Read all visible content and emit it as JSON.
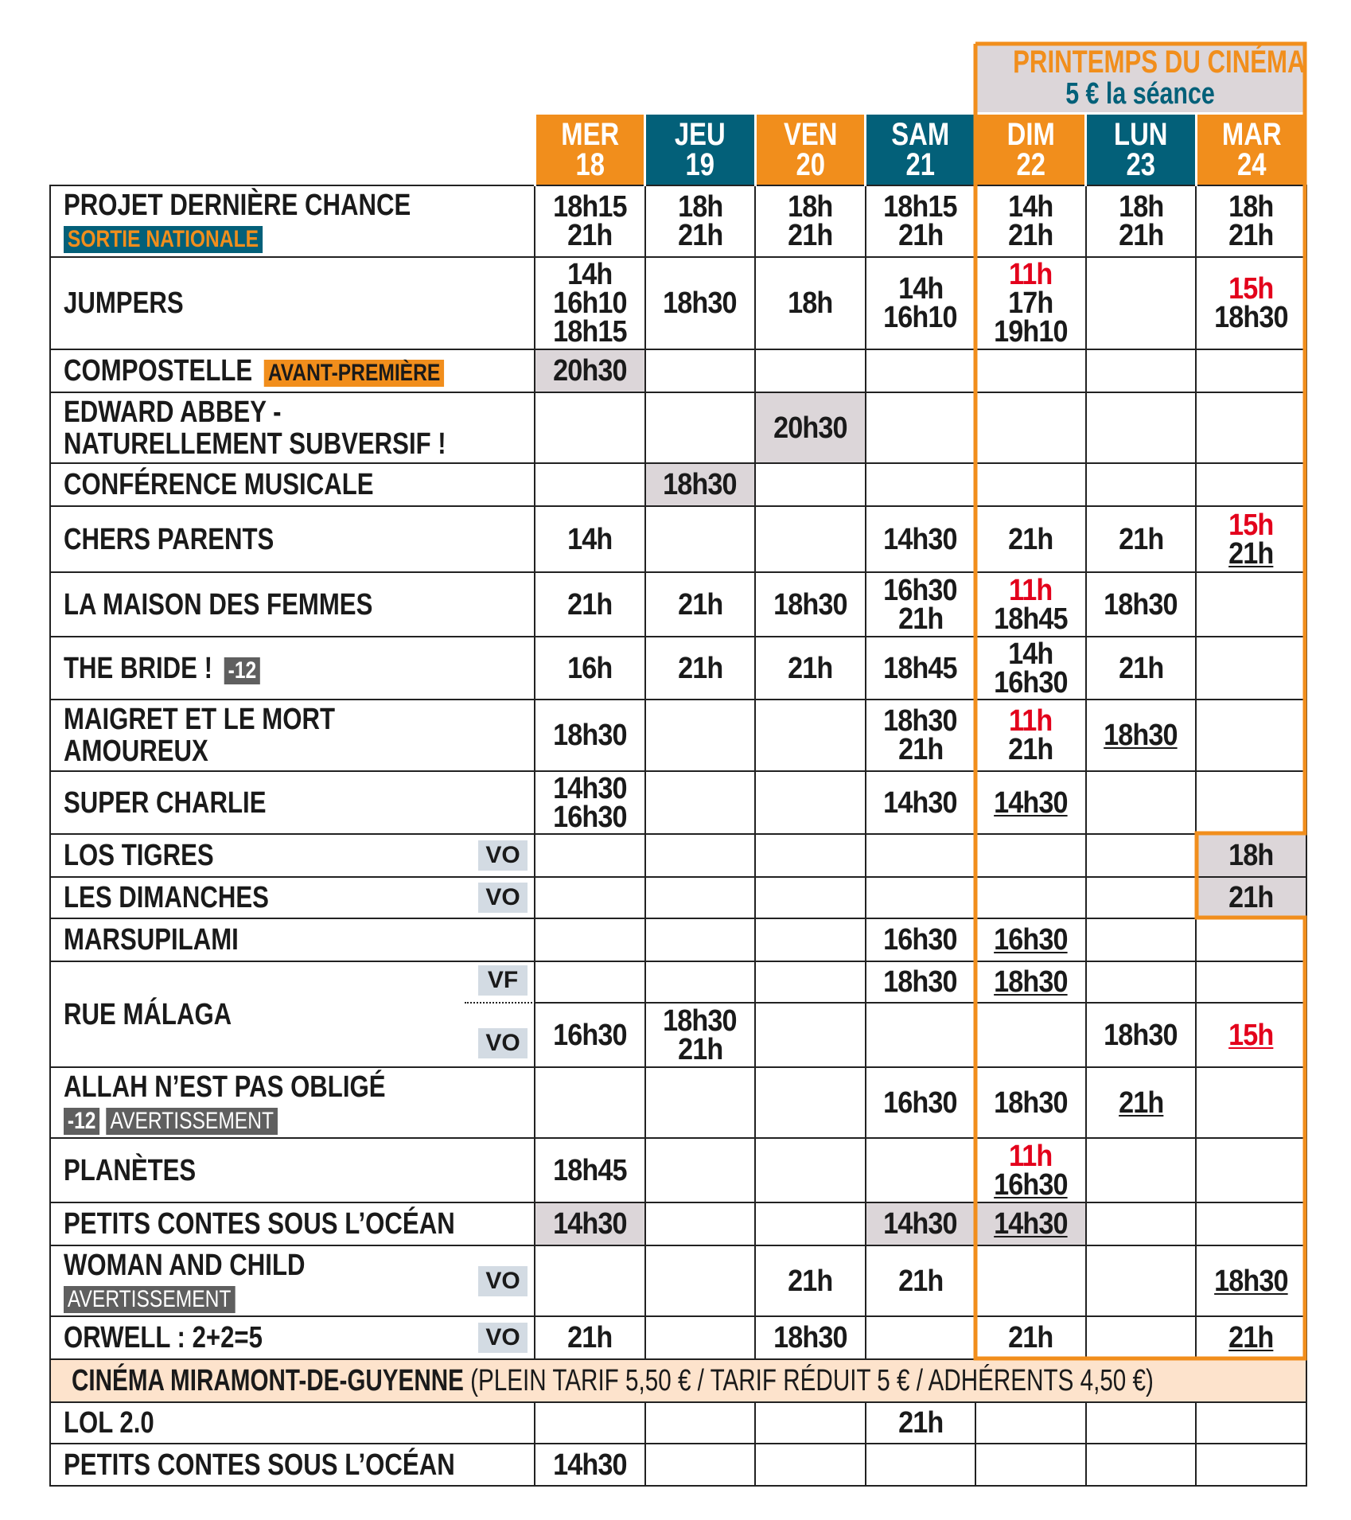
{
  "promo": {
    "title": "PRINTEMPS DU CINÉMA",
    "subtitle": "5 € la séance"
  },
  "colors": {
    "orange": "#f18e1c",
    "teal": "#036079",
    "red": "#e3001b",
    "shade": "#dcd6d9",
    "band": "#fde3cc"
  },
  "days": [
    {
      "name": "MER",
      "num": "18",
      "color": "#f18e1c"
    },
    {
      "name": "JEU",
      "num": "19",
      "color": "#036079"
    },
    {
      "name": "VEN",
      "num": "20",
      "color": "#f18e1c"
    },
    {
      "name": "SAM",
      "num": "21",
      "color": "#036079"
    },
    {
      "name": "DIM",
      "num": "22",
      "color": "#f18e1c"
    },
    {
      "name": "LUN",
      "num": "23",
      "color": "#036079"
    },
    {
      "name": "MAR",
      "num": "24",
      "color": "#f18e1c"
    }
  ],
  "films": [
    {
      "title": [
        "PROJET DERNIÈRE CHANCE"
      ],
      "badges_below": [
        {
          "text": "SORTIE NATIONALE",
          "style": "sortie"
        }
      ],
      "cells": [
        [
          {
            "t": "18h15"
          },
          {
            "t": "21h"
          }
        ],
        [
          {
            "t": "18h"
          },
          {
            "t": "21h"
          }
        ],
        [
          {
            "t": "18h"
          },
          {
            "t": "21h"
          }
        ],
        [
          {
            "t": "18h15"
          },
          {
            "t": "21h"
          }
        ],
        [
          {
            "t": "14h"
          },
          {
            "t": "21h"
          }
        ],
        [
          {
            "t": "18h"
          },
          {
            "t": "21h"
          }
        ],
        [
          {
            "t": "18h"
          },
          {
            "t": "21h"
          }
        ]
      ]
    },
    {
      "title": [
        "JUMPERS"
      ],
      "cells": [
        [
          {
            "t": "14h"
          },
          {
            "t": "16h10"
          },
          {
            "t": "18h15"
          }
        ],
        [
          {
            "t": "18h30"
          }
        ],
        [
          {
            "t": "18h"
          }
        ],
        [
          {
            "t": "14h"
          },
          {
            "t": "16h10"
          }
        ],
        [
          {
            "t": "11h",
            "red": true
          },
          {
            "t": "17h"
          },
          {
            "t": "19h10"
          }
        ],
        [],
        [
          {
            "t": "15h",
            "red": true
          },
          {
            "t": "18h30"
          }
        ]
      ]
    },
    {
      "title": [
        "COMPOSTELLE"
      ],
      "badge_inline": {
        "text": "AVANT-PREMIÈRE",
        "style": "avant"
      },
      "shaded": [
        0
      ],
      "cells": [
        [
          {
            "t": "20h30"
          }
        ],
        [],
        [],
        [],
        [],
        [],
        []
      ]
    },
    {
      "title": [
        "EDWARD ABBEY -",
        "NATURELLEMENT SUBVERSIF !"
      ],
      "shaded": [
        2
      ],
      "cells": [
        [],
        [],
        [
          {
            "t": "20h30"
          }
        ],
        [],
        [],
        [],
        []
      ]
    },
    {
      "title": [
        "CONFÉRENCE MUSICALE"
      ],
      "shaded": [
        1
      ],
      "cells": [
        [],
        [
          {
            "t": "18h30"
          }
        ],
        [],
        [],
        [],
        [],
        []
      ]
    },
    {
      "title": [
        "CHERS PARENTS"
      ],
      "cells": [
        [
          {
            "t": "14h"
          }
        ],
        [],
        [],
        [
          {
            "t": "14h30"
          }
        ],
        [
          {
            "t": "21h"
          }
        ],
        [
          {
            "t": "21h"
          }
        ],
        [
          {
            "t": "15h",
            "red": true
          },
          {
            "t": "21h",
            "u": true
          }
        ]
      ]
    },
    {
      "title": [
        "LA MAISON DES FEMMES"
      ],
      "cells": [
        [
          {
            "t": "21h"
          }
        ],
        [
          {
            "t": "21h"
          }
        ],
        [
          {
            "t": "18h30"
          }
        ],
        [
          {
            "t": "16h30"
          },
          {
            "t": "21h"
          }
        ],
        [
          {
            "t": "11h",
            "red": true
          },
          {
            "t": "18h45"
          }
        ],
        [
          {
            "t": "18h30"
          }
        ],
        []
      ]
    },
    {
      "title": [
        "THE BRIDE !"
      ],
      "badge_inline": {
        "text": "-12",
        "style": "age"
      },
      "cells": [
        [
          {
            "t": "16h"
          }
        ],
        [
          {
            "t": "21h"
          }
        ],
        [
          {
            "t": "21h"
          }
        ],
        [
          {
            "t": "18h45"
          }
        ],
        [
          {
            "t": "14h"
          },
          {
            "t": "16h30"
          }
        ],
        [
          {
            "t": "21h"
          }
        ],
        []
      ]
    },
    {
      "title": [
        "MAIGRET ET LE MORT",
        "AMOUREUX"
      ],
      "cells": [
        [
          {
            "t": "18h30"
          }
        ],
        [],
        [],
        [
          {
            "t": "18h30"
          },
          {
            "t": "21h"
          }
        ],
        [
          {
            "t": "11h",
            "red": true
          },
          {
            "t": "21h"
          }
        ],
        [
          {
            "t": "18h30",
            "u": true
          }
        ],
        []
      ]
    },
    {
      "title": [
        "SUPER CHARLIE"
      ],
      "cells": [
        [
          {
            "t": "14h30"
          },
          {
            "t": "16h30"
          }
        ],
        [],
        [],
        [
          {
            "t": "14h30"
          }
        ],
        [
          {
            "t": "14h30",
            "u": true
          }
        ],
        [],
        []
      ]
    },
    {
      "title": [
        "LOS TIGRES"
      ],
      "tag": "VO",
      "shaded": [
        6
      ],
      "cells": [
        [],
        [],
        [],
        [],
        [],
        [],
        [
          {
            "t": "18h"
          }
        ]
      ]
    },
    {
      "title": [
        "LES DIMANCHES"
      ],
      "tag": "VO",
      "shaded": [
        6
      ],
      "cells": [
        [],
        [],
        [],
        [],
        [],
        [],
        [
          {
            "t": "21h"
          }
        ]
      ]
    },
    {
      "title": [
        "MARSUPILAMI"
      ],
      "cells": [
        [],
        [],
        [],
        [
          {
            "t": "16h30"
          }
        ],
        [
          {
            "t": "16h30",
            "u": true
          }
        ],
        [],
        []
      ]
    },
    {
      "title": [
        "RUE MÁLAGA"
      ],
      "sub": [
        {
          "tag": "VF",
          "cells": [
            [],
            [],
            [],
            [
              {
                "t": "18h30"
              }
            ],
            [
              {
                "t": "18h30",
                "u": true
              }
            ],
            [],
            []
          ]
        },
        {
          "tag": "VO",
          "cells": [
            [
              {
                "t": "16h30"
              }
            ],
            [
              {
                "t": "18h30"
              },
              {
                "t": "21h"
              }
            ],
            [],
            [],
            [],
            [
              {
                "t": "18h30"
              }
            ],
            [
              {
                "t": "15h",
                "red": true,
                "u": true
              }
            ]
          ]
        }
      ]
    },
    {
      "title": [
        "ALLAH N’EST PAS OBLIGÉ"
      ],
      "badges_below": [
        {
          "text": "-12",
          "style": "age"
        },
        {
          "text": "AVERTISSEMENT",
          "style": "avert"
        }
      ],
      "cells": [
        [],
        [],
        [],
        [
          {
            "t": "16h30"
          }
        ],
        [
          {
            "t": "18h30"
          }
        ],
        [
          {
            "t": "21h",
            "u": true
          }
        ],
        []
      ]
    },
    {
      "title": [
        "PLANÈTES"
      ],
      "cells": [
        [
          {
            "t": "18h45"
          }
        ],
        [],
        [],
        [],
        [
          {
            "t": "11h",
            "red": true
          },
          {
            "t": "16h30",
            "u": true
          }
        ],
        [],
        []
      ]
    },
    {
      "title": [
        "PETITS CONTES SOUS L’OCÉAN"
      ],
      "shaded": [
        0,
        3,
        4
      ],
      "cells": [
        [
          {
            "t": "14h30"
          }
        ],
        [],
        [],
        [
          {
            "t": "14h30"
          }
        ],
        [
          {
            "t": "14h30",
            "u": true
          }
        ],
        [],
        []
      ]
    },
    {
      "title": [
        "WOMAN AND CHILD"
      ],
      "badges_below": [
        {
          "text": "AVERTISSEMENT",
          "style": "avert"
        }
      ],
      "tag": "VO",
      "cells": [
        [],
        [],
        [
          {
            "t": "21h"
          }
        ],
        [
          {
            "t": "21h"
          }
        ],
        [],
        [],
        [
          {
            "t": "18h30",
            "u": true
          }
        ]
      ]
    },
    {
      "title": [
        "ORWELL : 2+2=5"
      ],
      "tag": "VO",
      "cells": [
        [
          {
            "t": "21h"
          }
        ],
        [],
        [
          {
            "t": "18h30"
          }
        ],
        [],
        [
          {
            "t": "21h"
          }
        ],
        [],
        [
          {
            "t": "21h",
            "u": true
          }
        ]
      ]
    }
  ],
  "band": {
    "cinema": "CINÉMA MIRAMONT-DE-GUYENNE",
    "prices": "(PLEIN TARIF 5,50 € / TARIF RÉDUIT 5 € / ADHÉRENTS 4,50 €)"
  },
  "films2": [
    {
      "title": [
        "LOL 2.0"
      ],
      "cells": [
        [],
        [],
        [],
        [
          {
            "t": "21h"
          }
        ],
        [],
        [],
        []
      ]
    },
    {
      "title": [
        "PETITS CONTES SOUS L’OCÉAN"
      ],
      "cells": [
        [
          {
            "t": "14h30"
          }
        ],
        [],
        [],
        [],
        [],
        [],
        []
      ]
    }
  ]
}
